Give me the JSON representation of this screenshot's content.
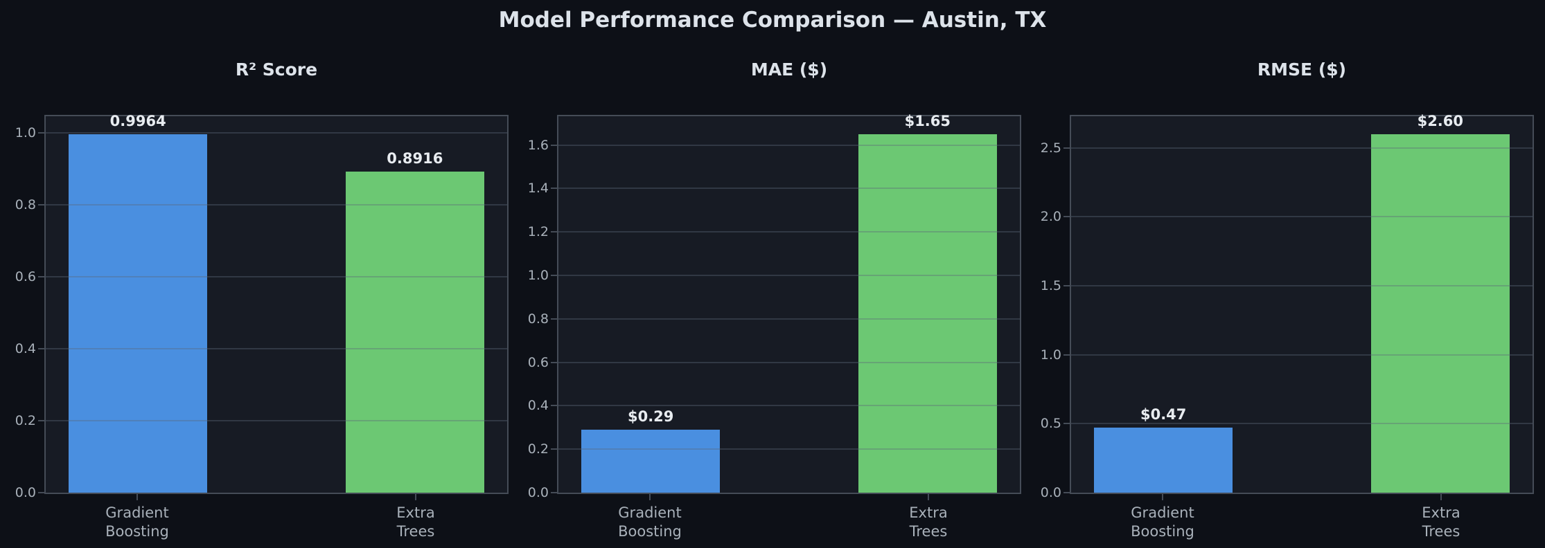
{
  "figure_title": "Model Performance Comparison — Austin, TX",
  "colors": {
    "page_bg": "#0d1017",
    "plot_bg": "#171b24",
    "spine": "#454c57",
    "grid": "rgba(93,104,120,0.38)",
    "bar_gradient_boosting": "#4a8fe0",
    "bar_extra_trees": "#6cc873",
    "title_text": "#dde3ea",
    "tick_text": "#a9b1ba",
    "value_text": "#e8ecf0"
  },
  "chart_data": [
    {
      "type": "bar",
      "title": "R² Score",
      "categories": [
        "Gradient\nBoosting",
        "Extra\nTrees"
      ],
      "values": [
        0.9964,
        0.8916
      ],
      "value_labels": [
        "0.9964",
        "0.8916"
      ],
      "bar_colors": [
        "#4a8fe0",
        "#6cc873"
      ],
      "ylim": [
        0,
        1.0462
      ],
      "yticks": [
        0.0,
        0.2,
        0.4,
        0.6,
        0.8,
        1.0
      ],
      "ytick_labels": [
        "0.0",
        "0.2",
        "0.4",
        "0.6",
        "0.8",
        "1.0"
      ],
      "xlabel": "",
      "ylabel": "",
      "grid": true,
      "legend": false,
      "bar_centers_pct": [
        20,
        80
      ],
      "bar_width_pct": 30
    },
    {
      "type": "bar",
      "title": "MAE ($)",
      "categories": [
        "Gradient\nBoosting",
        "Extra\nTrees"
      ],
      "values": [
        0.29,
        1.65
      ],
      "value_labels": [
        "$0.29",
        "$1.65"
      ],
      "bar_colors": [
        "#4a8fe0",
        "#6cc873"
      ],
      "ylim": [
        0,
        1.7325
      ],
      "yticks": [
        0.0,
        0.2,
        0.4,
        0.6,
        0.8,
        1.0,
        1.2,
        1.4,
        1.6
      ],
      "ytick_labels": [
        "0.0",
        "0.2",
        "0.4",
        "0.6",
        "0.8",
        "1.0",
        "1.2",
        "1.4",
        "1.6"
      ],
      "xlabel": "",
      "ylabel": "",
      "grid": true,
      "legend": false,
      "bar_centers_pct": [
        20,
        80
      ],
      "bar_width_pct": 30
    },
    {
      "type": "bar",
      "title": "RMSE ($)",
      "categories": [
        "Gradient\nBoosting",
        "Extra\nTrees"
      ],
      "values": [
        0.47,
        2.6
      ],
      "value_labels": [
        "$0.47",
        "$2.60"
      ],
      "bar_colors": [
        "#4a8fe0",
        "#6cc873"
      ],
      "ylim": [
        0,
        2.73
      ],
      "yticks": [
        0.0,
        0.5,
        1.0,
        1.5,
        2.0,
        2.5
      ],
      "ytick_labels": [
        "0.0",
        "0.5",
        "1.0",
        "1.5",
        "2.0",
        "2.5"
      ],
      "xlabel": "",
      "ylabel": "",
      "grid": true,
      "legend": false,
      "bar_centers_pct": [
        20,
        80
      ],
      "bar_width_pct": 30
    }
  ]
}
